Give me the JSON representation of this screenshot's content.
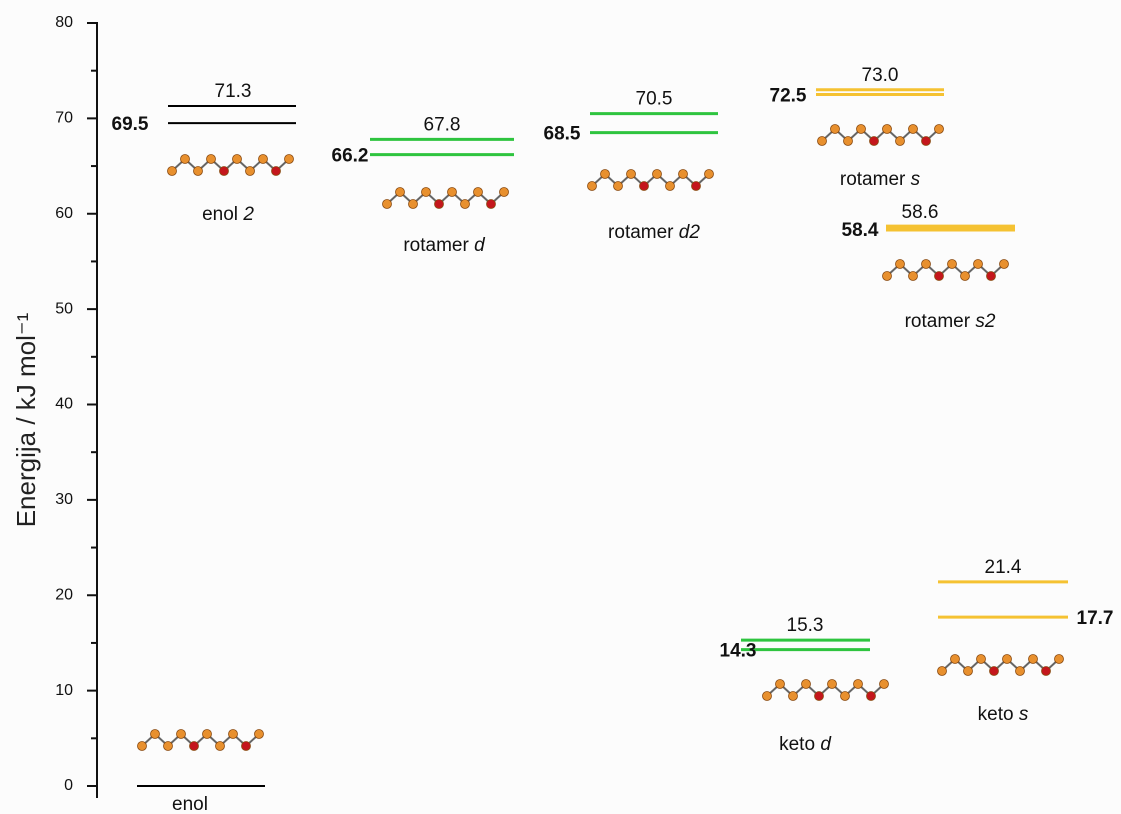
{
  "chart_data": {
    "type": "energy-levels",
    "ylabel": "Energija  / kJ mol⁻¹",
    "ylim": [
      0,
      80
    ],
    "yticks": [
      0,
      10,
      20,
      30,
      40,
      50,
      60,
      70,
      80
    ],
    "minor_yticks": [
      5,
      15,
      25,
      35,
      45,
      55,
      65,
      75
    ],
    "series": [
      {
        "name": "enol",
        "color": "#000000",
        "values": [
          0
        ],
        "value_labels": [
          null
        ]
      },
      {
        "name": "enol 2",
        "color": "#000000",
        "values": [
          71.3,
          69.5
        ]
      },
      {
        "name": "rotamer d",
        "color": "#2ec43f",
        "values": [
          67.8,
          66.2
        ]
      },
      {
        "name": "rotamer d2",
        "color": "#2ec43f",
        "values": [
          70.5,
          68.5
        ]
      },
      {
        "name": "rotamer s",
        "color": "#f5c232",
        "values": [
          73,
          72.5
        ],
        "value_labels": [
          "73.0",
          "72.5"
        ]
      },
      {
        "name": "rotamer s2",
        "color": "#f5c232",
        "values": [
          58.6,
          58.4
        ]
      },
      {
        "name": "keto d",
        "color": "#2ec43f",
        "values": [
          15.3,
          14.3
        ]
      },
      {
        "name": "keto s",
        "color": "#f5c232",
        "values": [
          21.4,
          17.7
        ]
      }
    ]
  }
}
